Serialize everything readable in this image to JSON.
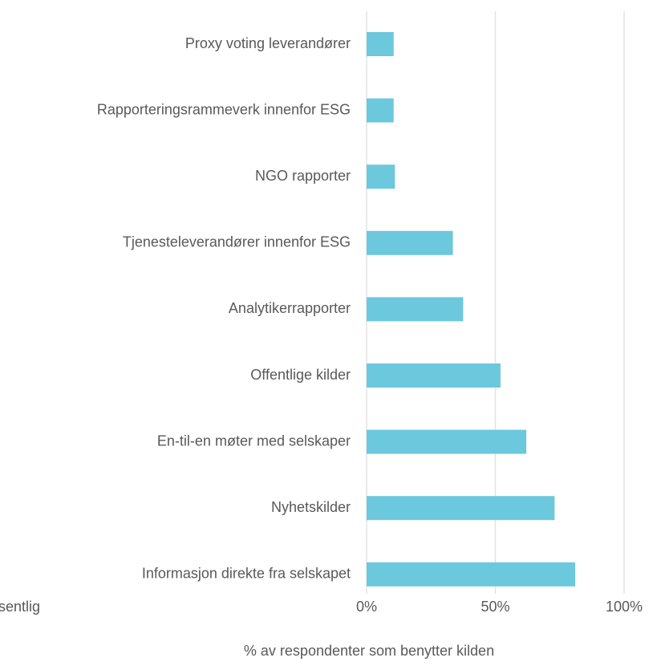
{
  "chart_data": {
    "type": "barh",
    "categories": [
      "Proxy voting leverandører",
      "Rapporteringsrammeverk innenfor ESG",
      "NGO rapporter",
      "Tjenesteleverandører innenfor ESG",
      "Analytikerrapporter",
      "Offentlige kilder",
      "En-til-en møter med selskaper",
      "Nyhetskilder",
      "Informasjon direkte fra selskapet"
    ],
    "values": [
      10.5,
      10.5,
      11,
      33.5,
      37.5,
      52,
      62,
      73,
      81
    ],
    "color": "#6cc8dc",
    "xlim": [
      0,
      100
    ],
    "xticks": [
      {
        "value": 0,
        "label": "0%"
      },
      {
        "value": 50,
        "label": "50%"
      },
      {
        "value": 100,
        "label": "100%"
      }
    ],
    "xlabel": "% av respondenter som benytter kilden",
    "note": "sentlig",
    "grid": true
  }
}
